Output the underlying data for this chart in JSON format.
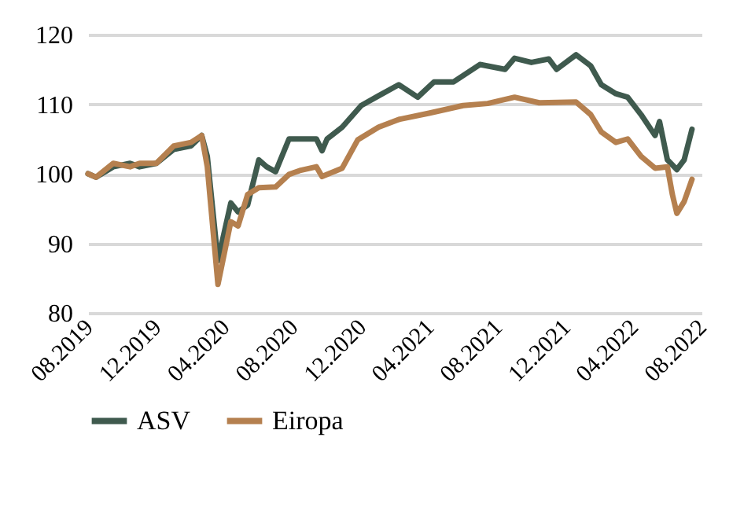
{
  "chart_data": {
    "type": "line",
    "xlim": [
      "2019-08-01",
      "2022-08-01"
    ],
    "xticks": [
      {
        "value": "2019-08-01",
        "label": "08.2019"
      },
      {
        "value": "2019-12-01",
        "label": "12.2019"
      },
      {
        "value": "2020-04-01",
        "label": "04.2020"
      },
      {
        "value": "2020-08-01",
        "label": "08.2020"
      },
      {
        "value": "2020-12-01",
        "label": "12.2020"
      },
      {
        "value": "2021-04-01",
        "label": "04.2021"
      },
      {
        "value": "2021-08-01",
        "label": "08.2021"
      },
      {
        "value": "2021-12-01",
        "label": "12.2021"
      },
      {
        "value": "2022-04-01",
        "label": "04.2022"
      },
      {
        "value": "2022-08-01",
        "label": "08.2022"
      }
    ],
    "ylim": [
      80,
      120
    ],
    "yticks": [
      80,
      90,
      100,
      110,
      120
    ],
    "grid": "y",
    "legend": "bottom",
    "line_style": "solid",
    "marker": "none",
    "series": [
      {
        "name": "ASV",
        "color": "#3f5a4e",
        "x": [
          "2019-08-01",
          "2019-08-15",
          "2019-09-15",
          "2019-10-15",
          "2019-11-01",
          "2019-12-01",
          "2020-01-01",
          "2020-02-01",
          "2020-02-20",
          "2020-03-01",
          "2020-03-20",
          "2020-04-12",
          "2020-04-25",
          "2020-05-12",
          "2020-06-01",
          "2020-06-15",
          "2020-07-01",
          "2020-07-25",
          "2020-08-15",
          "2020-09-12",
          "2020-09-22",
          "2020-10-01",
          "2020-10-28",
          "2020-12-01",
          "2021-01-01",
          "2021-02-06",
          "2021-03-12",
          "2021-04-10",
          "2021-05-15",
          "2021-07-01",
          "2021-08-15",
          "2021-09-01",
          "2021-10-01",
          "2021-11-01",
          "2021-11-15",
          "2021-12-20",
          "2022-01-15",
          "2022-02-03",
          "2022-03-01",
          "2022-03-22",
          "2022-04-15",
          "2022-05-10",
          "2022-05-18",
          "2022-06-01",
          "2022-06-18",
          "2022-07-01",
          "2022-07-15"
        ],
        "values": [
          100,
          99.5,
          101,
          101.5,
          101,
          101.5,
          103.5,
          104,
          105.5,
          102.5,
          87.5,
          95.8,
          94.5,
          95.5,
          102,
          101,
          100.3,
          105,
          105,
          105,
          103.3,
          105,
          106.7,
          109.8,
          111.2,
          112.8,
          111,
          113.2,
          113.2,
          115.7,
          115,
          116.6,
          116,
          116.5,
          115,
          117.1,
          115.5,
          112.8,
          111.5,
          111,
          108.5,
          105.5,
          107.5,
          102,
          100.6,
          102,
          106.4
        ]
      },
      {
        "name": "Eiropa",
        "color": "#b5804f",
        "x": [
          "2019-08-01",
          "2019-08-15",
          "2019-09-15",
          "2019-10-15",
          "2019-11-01",
          "2019-12-01",
          "2020-01-01",
          "2020-02-01",
          "2020-02-20",
          "2020-03-01",
          "2020-03-20",
          "2020-04-12",
          "2020-04-25",
          "2020-05-12",
          "2020-06-01",
          "2020-07-01",
          "2020-07-25",
          "2020-08-15",
          "2020-09-12",
          "2020-09-22",
          "2020-10-28",
          "2020-11-25",
          "2021-01-01",
          "2021-02-06",
          "2021-04-01",
          "2021-06-01",
          "2021-07-15",
          "2021-09-01",
          "2021-10-15",
          "2021-12-20",
          "2022-01-15",
          "2022-02-03",
          "2022-03-01",
          "2022-03-22",
          "2022-04-15",
          "2022-05-10",
          "2022-06-01",
          "2022-06-10",
          "2022-06-18",
          "2022-07-01",
          "2022-07-15"
        ],
        "values": [
          100,
          99.5,
          101.5,
          101,
          101.5,
          101.5,
          104,
          104.5,
          105.5,
          101,
          84.1,
          93.1,
          92.5,
          97,
          98,
          98.1,
          99.9,
          100.5,
          101,
          99.6,
          100.8,
          104.9,
          106.7,
          107.8,
          108.7,
          109.8,
          110.1,
          111,
          110.2,
          110.3,
          108.5,
          106,
          104.5,
          105,
          102.5,
          100.8,
          101,
          97,
          94.3,
          96,
          99.2
        ]
      }
    ]
  }
}
